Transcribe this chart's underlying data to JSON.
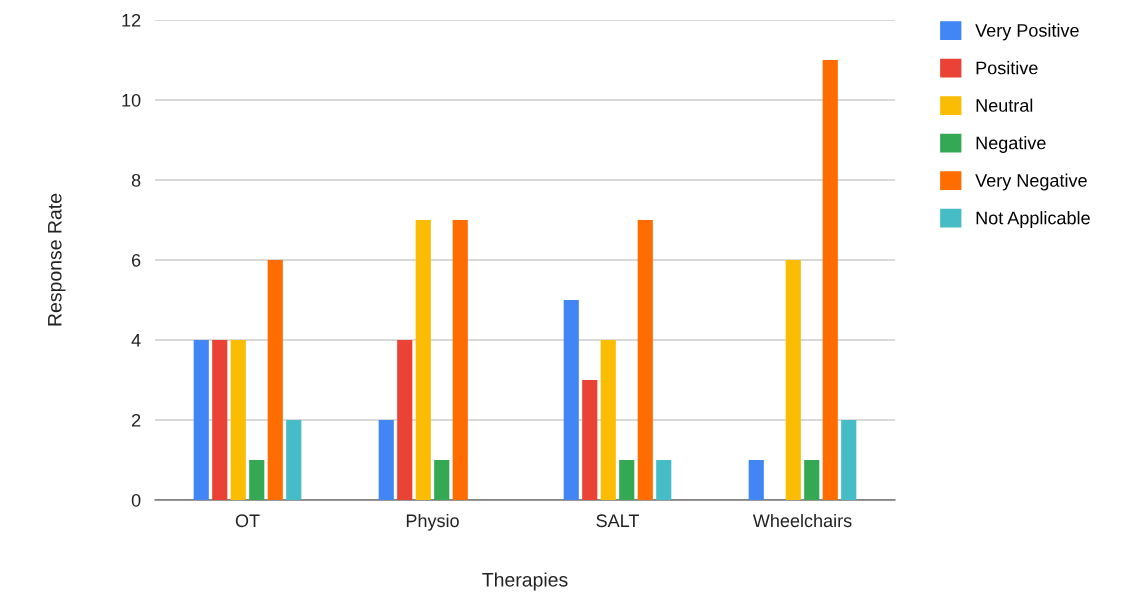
{
  "chart_data": {
    "type": "bar",
    "xlabel": "Therapies",
    "ylabel": "Response Rate",
    "categories": [
      "OT",
      "Physio",
      "SALT",
      "Wheelchairs"
    ],
    "series": [
      {
        "name": "Very Positive",
        "color": "#4285f4",
        "values": [
          4,
          2,
          5,
          1
        ]
      },
      {
        "name": "Positive",
        "color": "#ea4335",
        "values": [
          4,
          4,
          3,
          0
        ]
      },
      {
        "name": "Neutral",
        "color": "#fbbc04",
        "values": [
          4,
          7,
          4,
          6
        ]
      },
      {
        "name": "Negative",
        "color": "#34a853",
        "values": [
          1,
          1,
          1,
          1
        ]
      },
      {
        "name": "Very Negative",
        "color": "#ff6d01",
        "values": [
          6,
          7,
          7,
          11
        ]
      },
      {
        "name": "Not Applicable",
        "color": "#46bdc6",
        "values": [
          2,
          0,
          1,
          2
        ]
      }
    ],
    "ylim": [
      0,
      12
    ],
    "yticks": [
      0,
      2,
      4,
      6,
      8,
      10,
      12
    ],
    "grid": "y",
    "legend": "top right"
  }
}
